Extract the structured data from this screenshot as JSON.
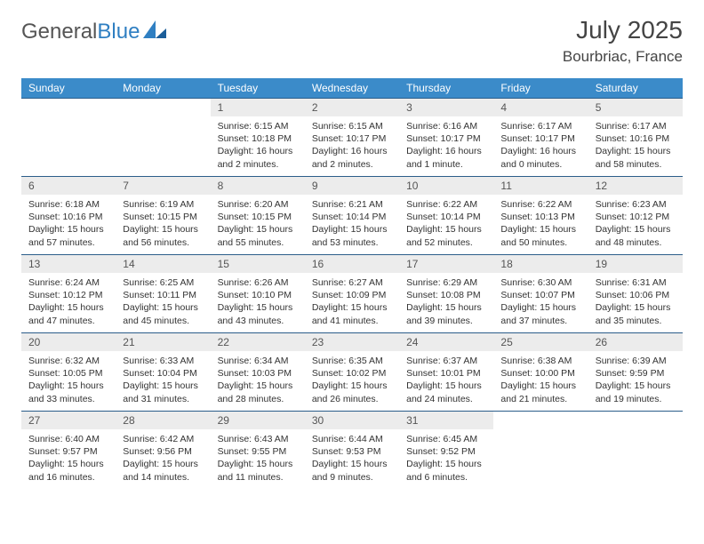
{
  "logo": {
    "part1": "General",
    "part2": "Blue"
  },
  "title": "July 2025",
  "location": "Bourbriac, France",
  "colors": {
    "header_bg": "#3b8bc9",
    "header_text": "#ffffff",
    "row_border": "#2b5d8a",
    "daynum_bg": "#ececec",
    "daynum_text": "#555555",
    "body_text": "#333333",
    "logo_gray": "#555555",
    "logo_blue": "#2f7fc2",
    "page_bg": "#ffffff"
  },
  "typography": {
    "title_fontsize": 28,
    "location_fontsize": 17,
    "logo_fontsize": 24,
    "dayheader_fontsize": 12,
    "daynum_fontsize": 12,
    "cell_fontsize": 10.5
  },
  "day_headers": [
    "Sunday",
    "Monday",
    "Tuesday",
    "Wednesday",
    "Thursday",
    "Friday",
    "Saturday"
  ],
  "weeks": [
    [
      null,
      null,
      {
        "n": "1",
        "sunrise": "6:15 AM",
        "sunset": "10:18 PM",
        "daylight": "16 hours and 2 minutes."
      },
      {
        "n": "2",
        "sunrise": "6:15 AM",
        "sunset": "10:17 PM",
        "daylight": "16 hours and 2 minutes."
      },
      {
        "n": "3",
        "sunrise": "6:16 AM",
        "sunset": "10:17 PM",
        "daylight": "16 hours and 1 minute."
      },
      {
        "n": "4",
        "sunrise": "6:17 AM",
        "sunset": "10:17 PM",
        "daylight": "16 hours and 0 minutes."
      },
      {
        "n": "5",
        "sunrise": "6:17 AM",
        "sunset": "10:16 PM",
        "daylight": "15 hours and 58 minutes."
      }
    ],
    [
      {
        "n": "6",
        "sunrise": "6:18 AM",
        "sunset": "10:16 PM",
        "daylight": "15 hours and 57 minutes."
      },
      {
        "n": "7",
        "sunrise": "6:19 AM",
        "sunset": "10:15 PM",
        "daylight": "15 hours and 56 minutes."
      },
      {
        "n": "8",
        "sunrise": "6:20 AM",
        "sunset": "10:15 PM",
        "daylight": "15 hours and 55 minutes."
      },
      {
        "n": "9",
        "sunrise": "6:21 AM",
        "sunset": "10:14 PM",
        "daylight": "15 hours and 53 minutes."
      },
      {
        "n": "10",
        "sunrise": "6:22 AM",
        "sunset": "10:14 PM",
        "daylight": "15 hours and 52 minutes."
      },
      {
        "n": "11",
        "sunrise": "6:22 AM",
        "sunset": "10:13 PM",
        "daylight": "15 hours and 50 minutes."
      },
      {
        "n": "12",
        "sunrise": "6:23 AM",
        "sunset": "10:12 PM",
        "daylight": "15 hours and 48 minutes."
      }
    ],
    [
      {
        "n": "13",
        "sunrise": "6:24 AM",
        "sunset": "10:12 PM",
        "daylight": "15 hours and 47 minutes."
      },
      {
        "n": "14",
        "sunrise": "6:25 AM",
        "sunset": "10:11 PM",
        "daylight": "15 hours and 45 minutes."
      },
      {
        "n": "15",
        "sunrise": "6:26 AM",
        "sunset": "10:10 PM",
        "daylight": "15 hours and 43 minutes."
      },
      {
        "n": "16",
        "sunrise": "6:27 AM",
        "sunset": "10:09 PM",
        "daylight": "15 hours and 41 minutes."
      },
      {
        "n": "17",
        "sunrise": "6:29 AM",
        "sunset": "10:08 PM",
        "daylight": "15 hours and 39 minutes."
      },
      {
        "n": "18",
        "sunrise": "6:30 AM",
        "sunset": "10:07 PM",
        "daylight": "15 hours and 37 minutes."
      },
      {
        "n": "19",
        "sunrise": "6:31 AM",
        "sunset": "10:06 PM",
        "daylight": "15 hours and 35 minutes."
      }
    ],
    [
      {
        "n": "20",
        "sunrise": "6:32 AM",
        "sunset": "10:05 PM",
        "daylight": "15 hours and 33 minutes."
      },
      {
        "n": "21",
        "sunrise": "6:33 AM",
        "sunset": "10:04 PM",
        "daylight": "15 hours and 31 minutes."
      },
      {
        "n": "22",
        "sunrise": "6:34 AM",
        "sunset": "10:03 PM",
        "daylight": "15 hours and 28 minutes."
      },
      {
        "n": "23",
        "sunrise": "6:35 AM",
        "sunset": "10:02 PM",
        "daylight": "15 hours and 26 minutes."
      },
      {
        "n": "24",
        "sunrise": "6:37 AM",
        "sunset": "10:01 PM",
        "daylight": "15 hours and 24 minutes."
      },
      {
        "n": "25",
        "sunrise": "6:38 AM",
        "sunset": "10:00 PM",
        "daylight": "15 hours and 21 minutes."
      },
      {
        "n": "26",
        "sunrise": "6:39 AM",
        "sunset": "9:59 PM",
        "daylight": "15 hours and 19 minutes."
      }
    ],
    [
      {
        "n": "27",
        "sunrise": "6:40 AM",
        "sunset": "9:57 PM",
        "daylight": "15 hours and 16 minutes."
      },
      {
        "n": "28",
        "sunrise": "6:42 AM",
        "sunset": "9:56 PM",
        "daylight": "15 hours and 14 minutes."
      },
      {
        "n": "29",
        "sunrise": "6:43 AM",
        "sunset": "9:55 PM",
        "daylight": "15 hours and 11 minutes."
      },
      {
        "n": "30",
        "sunrise": "6:44 AM",
        "sunset": "9:53 PM",
        "daylight": "15 hours and 9 minutes."
      },
      {
        "n": "31",
        "sunrise": "6:45 AM",
        "sunset": "9:52 PM",
        "daylight": "15 hours and 6 minutes."
      },
      null,
      null
    ]
  ],
  "labels": {
    "sunrise": "Sunrise:",
    "sunset": "Sunset:",
    "daylight": "Daylight:"
  }
}
